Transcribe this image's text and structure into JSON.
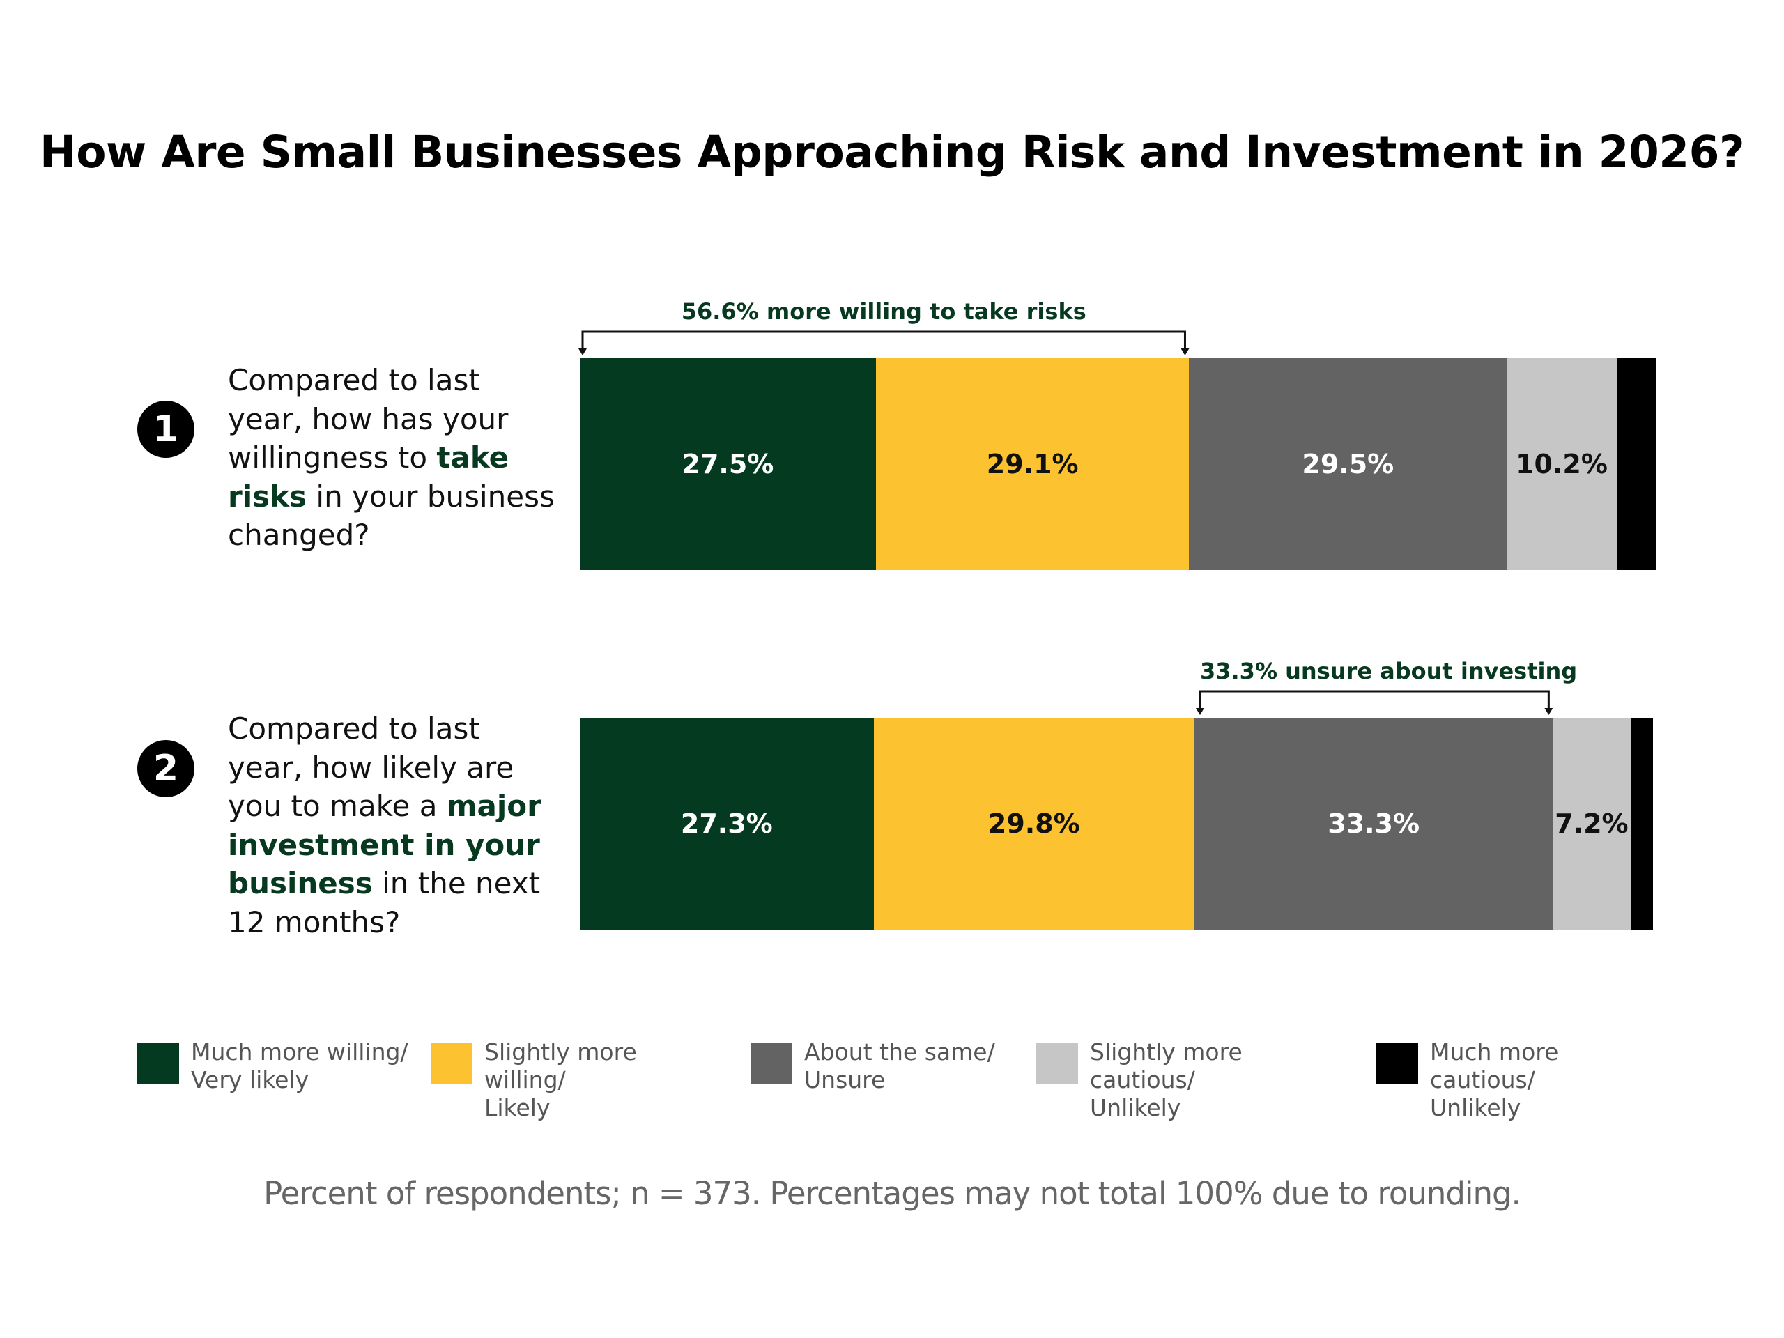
{
  "chart_data": {
    "type": "bar",
    "orientation": "horizontal",
    "stacked": true,
    "title": "How Are Small Businesses Approaching Risk and Investment in 2026?",
    "categories": [
      "Much more willing/\nVery likely",
      "Slightly more willing/\nLikely",
      "About the same/\nUnsure",
      "Slightly more cautious/\nUnlikely",
      "Much more cautious/\nUnlikely"
    ],
    "colors": [
      "#033a20",
      "#fdc22f",
      "#636363",
      "#c6c6c6",
      "#000000"
    ],
    "label_colors": [
      "#ffffff",
      "#111111",
      "#ffffff",
      "#111111",
      "#ffffff"
    ],
    "series": [
      {
        "number": "1",
        "question_parts": [
          {
            "text": "Compared to last year, how has your willingness to ",
            "em": false
          },
          {
            "text": "take risks",
            "em": true
          },
          {
            "text": " in your business changed?",
            "em": false
          }
        ],
        "values": [
          27.5,
          29.1,
          29.5,
          10.2,
          3.7
        ],
        "labels": [
          "27.5%",
          "29.1%",
          "29.5%",
          "10.2%",
          ""
        ],
        "bracket": {
          "text": "56.6% more willing to take risks",
          "from": 0,
          "to": 1
        }
      },
      {
        "number": "2",
        "question_parts": [
          {
            "text": "Compared to last year, how likely are you to make a ",
            "em": false
          },
          {
            "text": "major investment in your business",
            "em": true
          },
          {
            "text": " in the next 12 months?",
            "em": false
          }
        ],
        "values": [
          27.3,
          29.8,
          33.3,
          7.2,
          2.1
        ],
        "labels": [
          "27.3%",
          "29.8%",
          "33.3%",
          "7.2%",
          ""
        ],
        "bracket": {
          "text": "33.3% unsure about investing",
          "from": 2,
          "to": 2
        }
      }
    ],
    "legend_position": "bottom",
    "footnote": "Percent of respondents; n = 373. Percentages may not total 100% due to rounding."
  }
}
